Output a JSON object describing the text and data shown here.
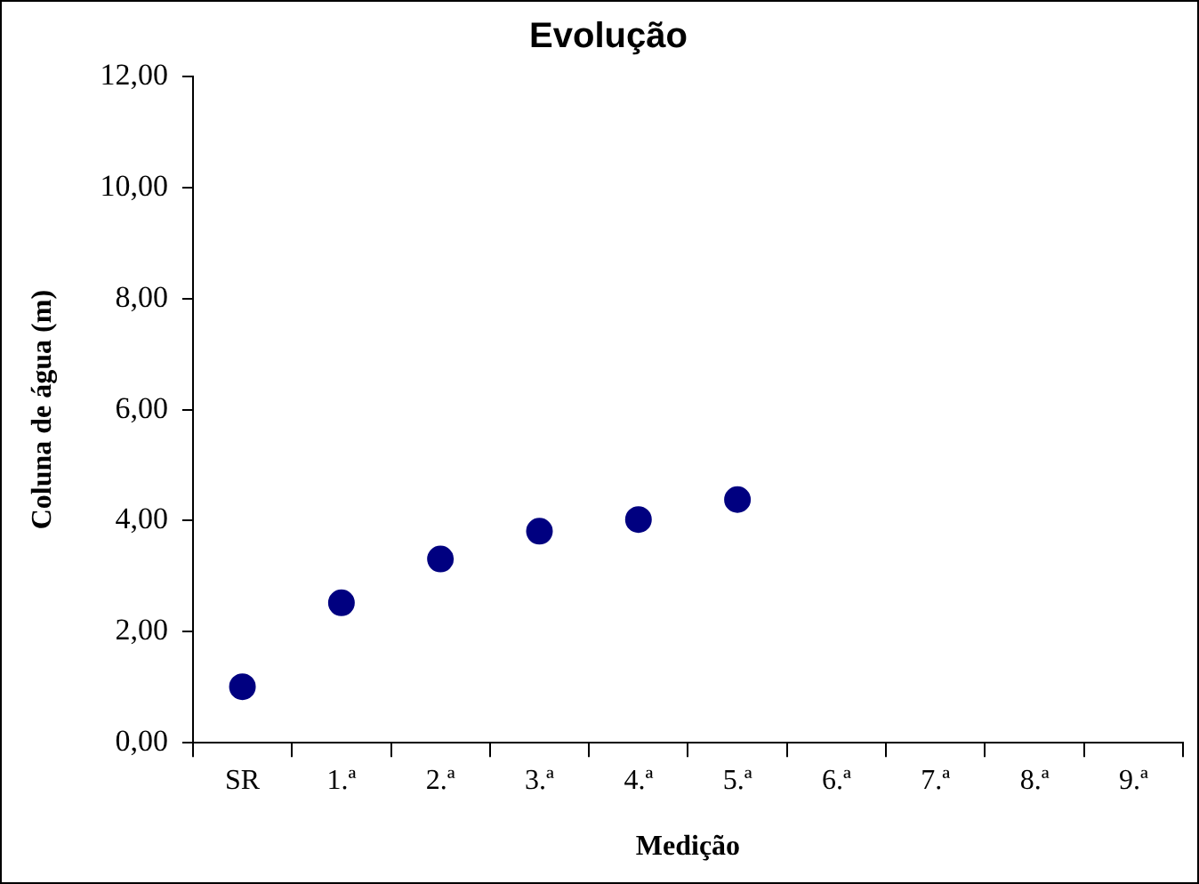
{
  "chart_data": {
    "type": "scatter",
    "title": "Evolução",
    "xlabel": "Medição",
    "ylabel": "Coluna de água (m)",
    "categories": [
      "SR",
      "1.ª",
      "2.ª",
      "3.ª",
      "4.ª",
      "5.ª",
      "6.ª",
      "7.ª",
      "8.ª",
      "9.ª"
    ],
    "series": [
      {
        "color": "#000080",
        "values": [
          1.01,
          2.52,
          3.31,
          3.81,
          4.02,
          4.38,
          null,
          null,
          null,
          null
        ]
      }
    ],
    "ylim": [
      0,
      12
    ],
    "yticks": [
      {
        "value": 0,
        "label": "0,00"
      },
      {
        "value": 2,
        "label": "2,00"
      },
      {
        "value": 4,
        "label": "4,00"
      },
      {
        "value": 6,
        "label": "6,00"
      },
      {
        "value": 8,
        "label": "8,00"
      },
      {
        "value": 10,
        "label": "10,00"
      },
      {
        "value": 12,
        "label": "12,00"
      }
    ],
    "grid": false,
    "legend": false,
    "marker": "circle"
  }
}
